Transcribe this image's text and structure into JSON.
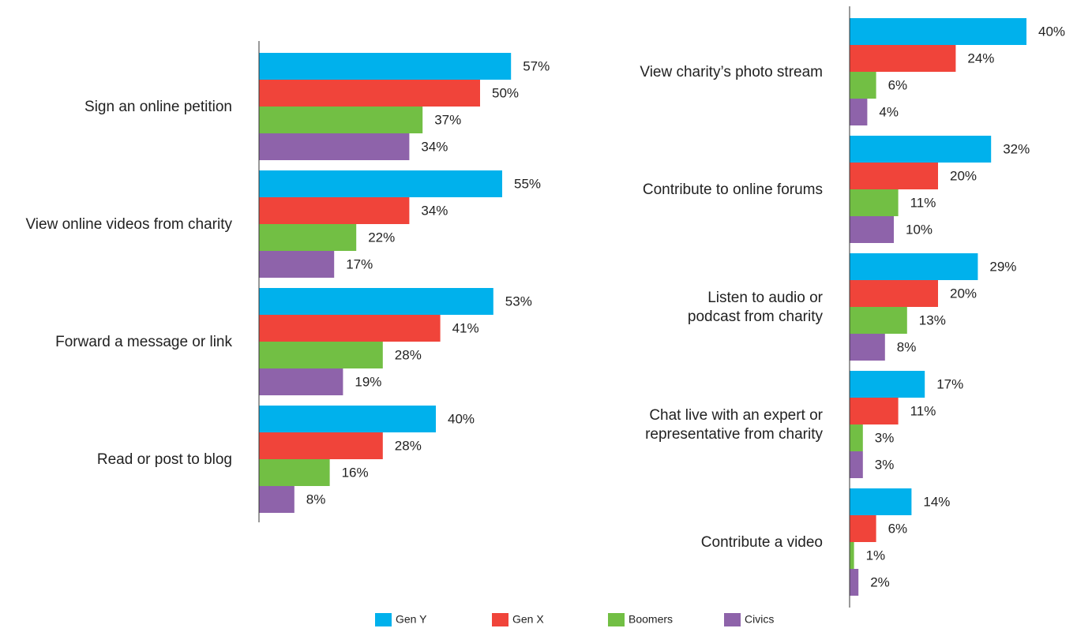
{
  "colors": {
    "Gen Y": "#00b1ec",
    "Gen X": "#f0443a",
    "Boomers": "#72bf44",
    "Civics": "#8e63aa",
    "axis": "#333333",
    "text": "#222222"
  },
  "legend": {
    "placement": "bottom-center",
    "items": [
      "Gen Y",
      "Gen X",
      "Boomers",
      "Civics"
    ]
  },
  "chart_data": [
    {
      "type": "bar",
      "orientation": "horizontal",
      "categories": [
        [
          "Sign an online petition"
        ],
        [
          "View online videos from charity"
        ],
        [
          "Forward a message or link"
        ],
        [
          "Read or post to blog"
        ]
      ],
      "series": [
        {
          "name": "Gen Y",
          "values": [
            57,
            55,
            53,
            40
          ]
        },
        {
          "name": "Gen X",
          "values": [
            50,
            34,
            41,
            28
          ]
        },
        {
          "name": "Boomers",
          "values": [
            37,
            22,
            28,
            16
          ]
        },
        {
          "name": "Civics",
          "values": [
            34,
            17,
            19,
            8
          ]
        }
      ],
      "value_suffix": "%",
      "grid": false
    },
    {
      "type": "bar",
      "orientation": "horizontal",
      "categories": [
        [
          "View charity’s photo stream"
        ],
        [
          "Contribute to online forums"
        ],
        [
          "Listen to audio or",
          "podcast from charity"
        ],
        [
          "Chat live with an expert or",
          "representative from charity"
        ],
        [
          "Contribute a video"
        ]
      ],
      "series": [
        {
          "name": "Gen Y",
          "values": [
            40,
            32,
            29,
            17,
            14
          ]
        },
        {
          "name": "Gen X",
          "values": [
            24,
            20,
            20,
            11,
            6
          ]
        },
        {
          "name": "Boomers",
          "values": [
            6,
            11,
            13,
            3,
            1
          ]
        },
        {
          "name": "Civics",
          "values": [
            4,
            10,
            8,
            3,
            2
          ]
        }
      ],
      "value_suffix": "%",
      "grid": false
    }
  ]
}
